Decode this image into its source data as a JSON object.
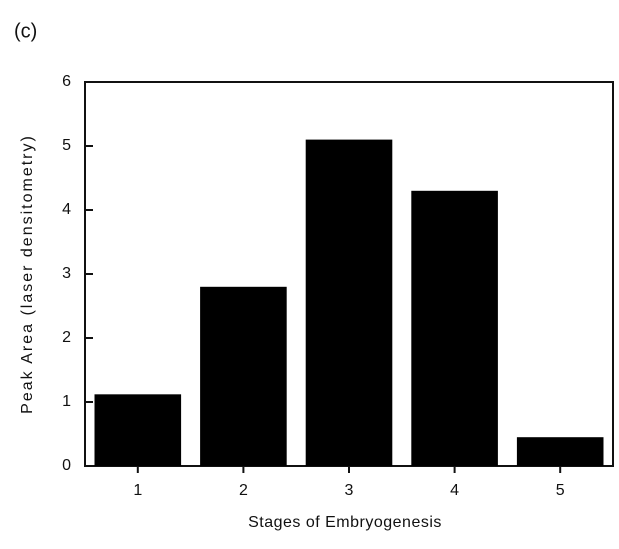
{
  "chart_data": {
    "type": "bar",
    "panel_label": "(c)",
    "x_label": "Stages of Embryogenesis",
    "y_label": "Peak Area (laser densitometry)",
    "categories": [
      "1",
      "2",
      "3",
      "4",
      "5"
    ],
    "values": [
      1.12,
      2.8,
      5.1,
      4.3,
      0.45
    ],
    "color": "#000000",
    "ylim": [
      0,
      6
    ],
    "yticks": [
      0,
      1,
      2,
      3,
      4,
      5,
      6
    ],
    "grid": false
  }
}
